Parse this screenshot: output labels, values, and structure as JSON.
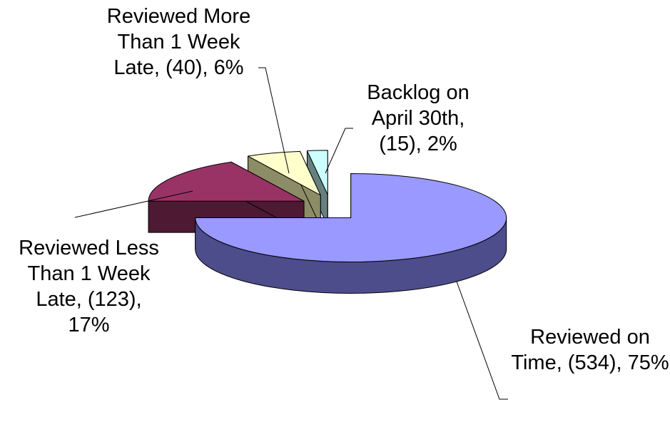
{
  "chart_data": {
    "type": "pie",
    "three_d": true,
    "value_labels": [
      "Reviewed on Time, (534), 75%",
      "Reviewed Less Than 1 Week Late, (123), 17%",
      "Reviewed More Than 1 Week Late, (40), 6%",
      "Backlog on April 30th, (15), 2%"
    ],
    "values": [
      534,
      123,
      40,
      15
    ],
    "colors": [
      "#9999ff",
      "#993366",
      "#ffffcc",
      "#ccffff"
    ],
    "side_colors": [
      "#4d4d8c",
      "#4d1933",
      "#8c8c66",
      "#668080"
    ]
  }
}
